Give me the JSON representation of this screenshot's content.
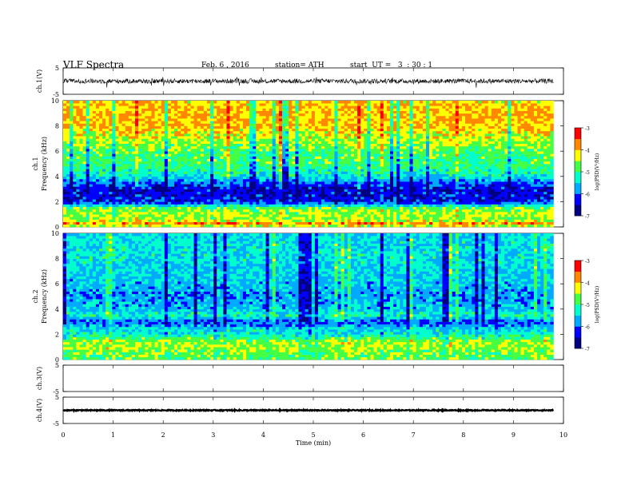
{
  "header": {
    "title": "VLF  Spectra",
    "date": "Feb. 6  , 2016",
    "station": "station= ATH",
    "start": "start  UT =   3  : 30 : 1"
  },
  "chart_data": [
    {
      "type": "line",
      "name": "ch1-waveform",
      "ylabel": "ch.1(V)",
      "yticks": [
        "5",
        "-5"
      ],
      "ylim": [
        -5,
        5
      ],
      "xlim": [
        0,
        10
      ],
      "baseline_v": 0.0,
      "noise_amplitude_v": 0.9,
      "data_end_min": 9.8
    },
    {
      "type": "heatmap",
      "name": "ch1-spectrogram",
      "ylabel_top": "ch.1",
      "ylabel": "Frequency  (kHz)",
      "yticks": [
        "0",
        "2",
        "4",
        "6",
        "8",
        "10"
      ],
      "ylim": [
        0,
        10
      ],
      "xlim": [
        0,
        10
      ],
      "data_end_min": 9.8,
      "colorbar": {
        "label": "log(PSD(V²/Hz)",
        "ticks": [
          "-3",
          "-4",
          "-5",
          "-6",
          "-7"
        ],
        "range": [
          -7,
          -3
        ]
      },
      "profile_khz_log": [
        [
          0,
          -4.6
        ],
        [
          0.3,
          -3.8
        ],
        [
          0.6,
          -4.6
        ],
        [
          1.0,
          -4.4
        ],
        [
          1.5,
          -4.7
        ],
        [
          2.0,
          -6.3
        ],
        [
          3.0,
          -6.4
        ],
        [
          3.5,
          -6.0
        ],
        [
          4.0,
          -5.4
        ],
        [
          5.0,
          -4.9
        ],
        [
          6.0,
          -4.8
        ],
        [
          7.0,
          -4.4
        ],
        [
          8.0,
          -4.0
        ],
        [
          9.0,
          -4.0
        ],
        [
          10.0,
          -4.1
        ]
      ]
    },
    {
      "type": "heatmap",
      "name": "ch2-spectrogram",
      "ylabel_top": "ch.2",
      "ylabel": "Frequency  (kHz)",
      "yticks": [
        "0",
        "2",
        "4",
        "6",
        "8",
        "10"
      ],
      "ylim": [
        0,
        10
      ],
      "xlim": [
        0,
        10
      ],
      "data_end_min": 9.8,
      "colorbar": {
        "label": "log(PSD(V²/Hz)",
        "ticks": [
          "-3",
          "-4",
          "-5",
          "-6",
          "-7"
        ],
        "range": [
          -7,
          -3
        ]
      },
      "profile_khz_log": [
        [
          0,
          -4.8
        ],
        [
          0.5,
          -4.7
        ],
        [
          1.0,
          -4.5
        ],
        [
          1.5,
          -4.6
        ],
        [
          2.0,
          -5.3
        ],
        [
          2.5,
          -5.5
        ],
        [
          3.0,
          -6.1
        ],
        [
          3.5,
          -5.2
        ],
        [
          4.0,
          -5.6
        ],
        [
          5.0,
          -5.8
        ],
        [
          6.0,
          -5.6
        ],
        [
          7.0,
          -5.5
        ],
        [
          8.0,
          -5.4
        ],
        [
          9.0,
          -5.4
        ],
        [
          10.0,
          -5.5
        ]
      ]
    },
    {
      "type": "line",
      "name": "ch3-waveform",
      "ylabel": "ch.3(V)",
      "yticks": [
        "5",
        "-5"
      ],
      "ylim": [
        -5,
        5
      ],
      "xlim": [
        0,
        10
      ],
      "empty": true
    },
    {
      "type": "line",
      "name": "ch4-waveform",
      "ylabel": "ch.4(V)",
      "yticks": [
        "5",
        "-5"
      ],
      "ylim": [
        -5,
        5
      ],
      "xlim": [
        0,
        10
      ],
      "baseline_v": 0.0,
      "noise_amplitude_v": 0.2,
      "data_end_min": 9.8
    }
  ],
  "x_axis": {
    "label": "Time  (min)",
    "ticks": [
      "0",
      "1",
      "2",
      "3",
      "4",
      "5",
      "6",
      "7",
      "8",
      "9",
      "10"
    ]
  },
  "colors": {
    "colormap": [
      "#000080",
      "#0000ff",
      "#00aaff",
      "#00ffcc",
      "#44ff44",
      "#ffff00",
      "#ff8800",
      "#ff0000",
      "#ffffff"
    ]
  }
}
